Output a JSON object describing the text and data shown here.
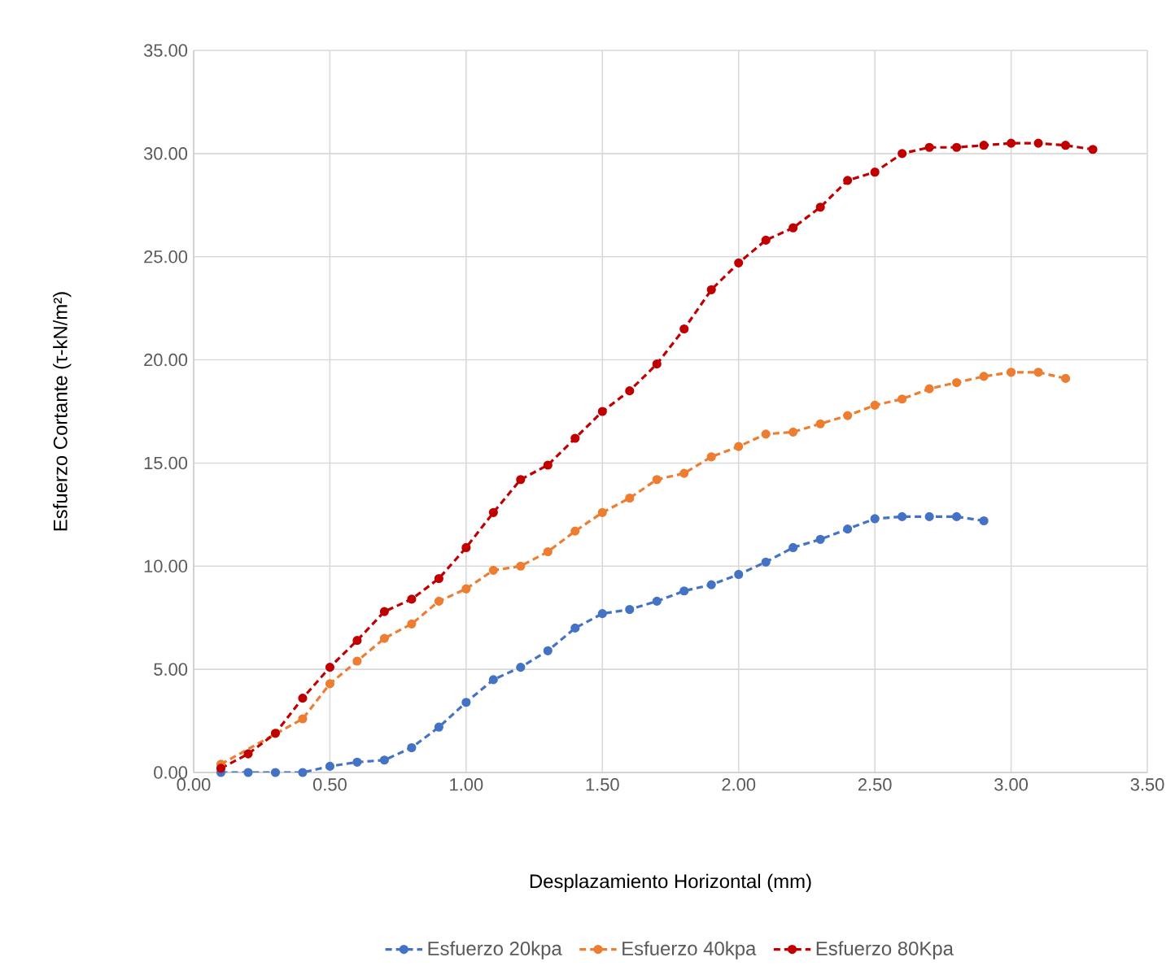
{
  "chart_data": {
    "type": "line",
    "xlabel": "Desplazamiento Horizontal (mm)",
    "ylabel": "Esfuerzo Cortante  (τ-kN/m²)",
    "series": [
      {
        "name": "Esfuerzo 20kpa",
        "color": "#4472c4",
        "x": [
          0.1,
          0.2,
          0.3,
          0.4,
          0.5,
          0.6,
          0.7,
          0.8,
          0.9,
          1.0,
          1.1,
          1.2,
          1.3,
          1.4,
          1.5,
          1.6,
          1.7,
          1.8,
          1.9,
          2.0,
          2.1,
          2.2,
          2.3,
          2.4,
          2.5,
          2.6,
          2.7,
          2.8,
          2.9
        ],
        "values": [
          0,
          0,
          0,
          0,
          0.3,
          0.5,
          0.6,
          1.2,
          2.2,
          3.4,
          4.5,
          5.1,
          5.9,
          7.0,
          7.7,
          7.9,
          8.3,
          8.8,
          9.1,
          9.6,
          10.2,
          10.9,
          11.3,
          11.8,
          12.3,
          12.4,
          12.4,
          12.4,
          12.2
        ]
      },
      {
        "name": "Esfuerzo 40kpa",
        "color": "#ed7d31",
        "x": [
          0.1,
          0.2,
          0.3,
          0.4,
          0.5,
          0.6,
          0.7,
          0.8,
          0.9,
          1.0,
          1.1,
          1.2,
          1.3,
          1.4,
          1.5,
          1.6,
          1.7,
          1.8,
          1.9,
          2.0,
          2.1,
          2.2,
          2.3,
          2.4,
          2.5,
          2.6,
          2.7,
          2.8,
          2.9,
          3.0,
          3.1,
          3.2
        ],
        "values": [
          0.4,
          null,
          null,
          2.6,
          4.3,
          5.4,
          6.5,
          7.2,
          8.3,
          8.9,
          9.8,
          10.0,
          10.7,
          11.7,
          12.6,
          13.3,
          14.2,
          14.5,
          15.3,
          15.8,
          16.4,
          16.5,
          16.9,
          17.3,
          17.8,
          18.1,
          18.6,
          18.9,
          19.2,
          19.4,
          19.4,
          19.1
        ]
      },
      {
        "name": "Esfuerzo 80Kpa",
        "color": "#c00000",
        "x": [
          0.1,
          0.2,
          0.3,
          0.4,
          0.5,
          0.6,
          0.7,
          0.8,
          0.9,
          1.0,
          1.1,
          1.2,
          1.3,
          1.4,
          1.5,
          1.6,
          1.7,
          1.8,
          1.9,
          2.0,
          2.1,
          2.2,
          2.3,
          2.4,
          2.5,
          2.6,
          2.7,
          2.8,
          2.9,
          3.0,
          3.1,
          3.2,
          3.3
        ],
        "values": [
          0.2,
          0.9,
          1.9,
          3.6,
          5.1,
          6.4,
          7.8,
          8.4,
          9.4,
          10.9,
          12.6,
          14.2,
          14.9,
          16.2,
          17.5,
          18.5,
          19.8,
          21.5,
          23.4,
          24.7,
          25.8,
          26.4,
          27.4,
          28.7,
          29.1,
          30.0,
          30.3,
          30.3,
          30.4,
          30.5,
          30.5,
          30.4,
          30.2
        ]
      }
    ],
    "xlim": [
      0,
      3.5
    ],
    "xticks": [
      {
        "value": 0,
        "label": "0.00"
      },
      {
        "value": 0.5,
        "label": "0.50"
      },
      {
        "value": 1,
        "label": "1.00"
      },
      {
        "value": 1.5,
        "label": "1.50"
      },
      {
        "value": 2,
        "label": "2.00"
      },
      {
        "value": 2.5,
        "label": "2.50"
      },
      {
        "value": 3,
        "label": "3.00"
      },
      {
        "value": 3.5,
        "label": "3.50"
      }
    ],
    "ylim": [
      0,
      35
    ],
    "yticks": [
      {
        "value": 0,
        "label": "0.00"
      },
      {
        "value": 5,
        "label": "5.00"
      },
      {
        "value": 10,
        "label": "10.00"
      },
      {
        "value": 15,
        "label": "15.00"
      },
      {
        "value": 20,
        "label": "20.00"
      },
      {
        "value": 25,
        "label": "25.00"
      },
      {
        "value": 30,
        "label": "30.00"
      },
      {
        "value": 35,
        "label": "35.00"
      }
    ],
    "grid": true,
    "legend": "bottom",
    "marker": "circle",
    "line_style": "dashed"
  }
}
